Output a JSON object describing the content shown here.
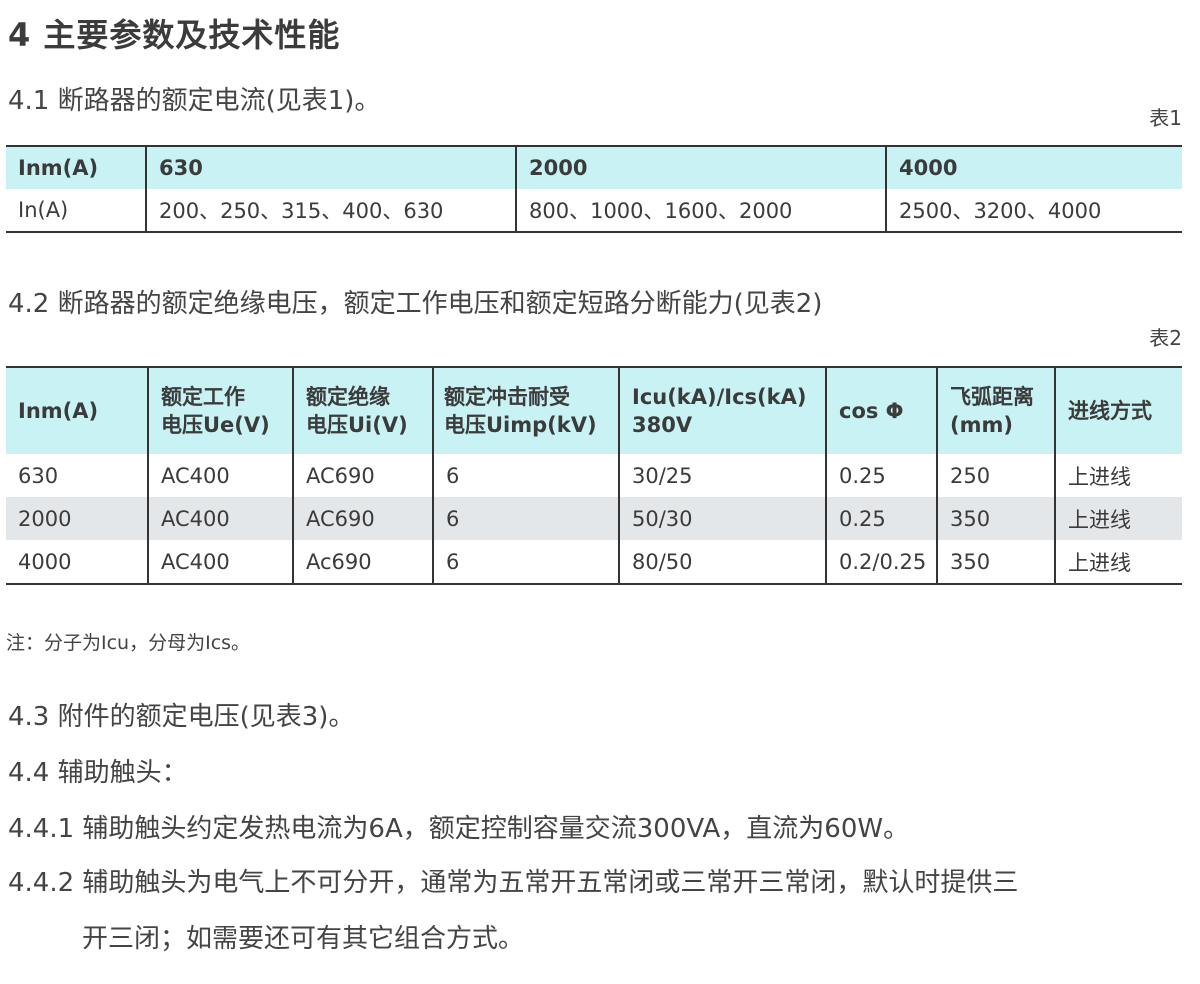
{
  "heading": "4 主要参数及技术性能",
  "sec41": "4.1 断路器的额定电流(见表1)。",
  "table1": {
    "caption": "表1",
    "header": [
      "Inm(A)",
      "630",
      "2000",
      "4000"
    ],
    "row": [
      "In(A)",
      "200、250、315、400、630",
      "800、1000、1600、2000",
      "2500、3200、4000"
    ]
  },
  "sec42": "4.2 断路器的额定绝缘电压，额定工作电压和额定短路分断能力(见表2)",
  "table2": {
    "caption": "表2",
    "header": [
      [
        "Inm(A)"
      ],
      [
        "额定工作",
        "电压Ue(V)"
      ],
      [
        "额定绝缘",
        "电压Ui(V)"
      ],
      [
        "额定冲击耐受",
        "电压Uimp(kV)"
      ],
      [
        "Icu(kA)/Ics(kA)",
        "380V"
      ],
      [
        "cos Φ"
      ],
      [
        "飞弧距离",
        "(mm)"
      ],
      [
        "进线方式"
      ]
    ],
    "rows": [
      [
        "630",
        "AC400",
        "AC690",
        "6",
        "30/25",
        "0.25",
        "250",
        "上进线"
      ],
      [
        "2000",
        "AC400",
        "AC690",
        "6",
        "50/30",
        "0.25",
        "350",
        "上进线"
      ],
      [
        "4000",
        "AC400",
        "Ac690",
        "6",
        "80/50",
        "0.2/0.25",
        "350",
        "上进线"
      ]
    ]
  },
  "note": "注：分子为Icu，分母为Ics。",
  "sec43": "4.3 附件的额定电压(见表3)。",
  "sec44": "4.4 辅助触头：",
  "sec441": "4.4.1 辅助触头约定发热电流为6A，额定控制容量交流300VA，直流为60W。",
  "sec442_line1": "4.4.2 辅助触头为电气上不可分开，通常为五常开五常闭或三常开三常闭，默认时提供三",
  "sec442_line2": "开三闭；如需要还可有其它组合方式。"
}
